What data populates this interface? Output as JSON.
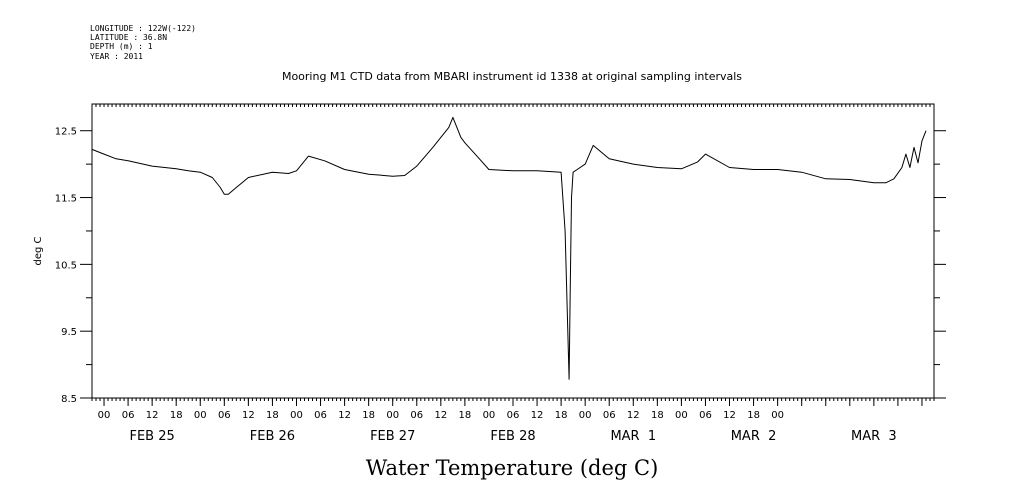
{
  "header": {
    "longitude": "LONGITUDE : 122W(-122)",
    "latitude": "LATITUDE : 36.8N",
    "depth": "DEPTH (m) : 1",
    "year": "YEAR : 2011"
  },
  "chart_data": {
    "type": "line",
    "title": "Mooring M1 CTD data from MBARI instrument id 1338 at original sampling intervals",
    "xlabel": "Water Temperature (deg C)",
    "ylabel": "deg C",
    "ylim": [
      8.5,
      12.9
    ],
    "yticks": [
      "12.5",
      "11.5",
      "10.5",
      "9.5",
      "8.5"
    ],
    "xlim_hours": [
      -3,
      207
    ],
    "hour_tick_labels": [
      "00",
      "06",
      "12",
      "18",
      "00",
      "06",
      "12",
      "18",
      "00",
      "06",
      "12",
      "18",
      "00",
      "06",
      "12",
      "18",
      "00",
      "06",
      "12",
      "18",
      "00",
      "06",
      "12",
      "18",
      "00",
      "06",
      "12",
      "18",
      "00"
    ],
    "day_labels": [
      "FEB 25",
      "FEB 26",
      "FEB 27",
      "FEB 28",
      "MAR  1",
      "MAR  2",
      "MAR  3"
    ],
    "grid": false,
    "series": [
      {
        "x": [
          -3,
          0,
          3,
          6,
          12,
          18,
          21,
          24,
          27,
          29,
          30,
          31,
          33,
          36,
          42,
          46,
          48,
          51,
          55,
          60,
          66,
          72,
          75,
          78,
          82,
          86,
          87,
          88,
          89,
          90,
          93,
          96,
          102,
          108,
          114,
          115,
          116,
          116.3,
          116.6,
          117,
          118,
          120,
          122,
          126,
          132,
          138,
          144,
          148,
          150,
          156,
          162,
          168,
          174,
          180,
          186,
          192,
          195,
          197,
          199,
          200,
          201,
          202,
          203,
          204,
          205
        ],
        "y": [
          12.22,
          12.15,
          12.08,
          12.05,
          11.97,
          11.93,
          11.9,
          11.88,
          11.8,
          11.65,
          11.55,
          11.55,
          11.65,
          11.8,
          11.88,
          11.86,
          11.9,
          12.12,
          12.05,
          11.92,
          11.85,
          11.82,
          11.83,
          11.97,
          12.25,
          12.55,
          12.7,
          12.55,
          12.4,
          12.32,
          12.12,
          11.92,
          11.9,
          11.9,
          11.88,
          11.0,
          8.78,
          10.2,
          11.5,
          11.88,
          11.92,
          12.0,
          12.28,
          12.08,
          12.0,
          11.95,
          11.93,
          12.03,
          12.15,
          11.95,
          11.92,
          11.92,
          11.88,
          11.78,
          11.77,
          11.72,
          11.72,
          11.78,
          11.95,
          12.15,
          11.95,
          12.25,
          12.02,
          12.35,
          12.5
        ]
      }
    ]
  }
}
